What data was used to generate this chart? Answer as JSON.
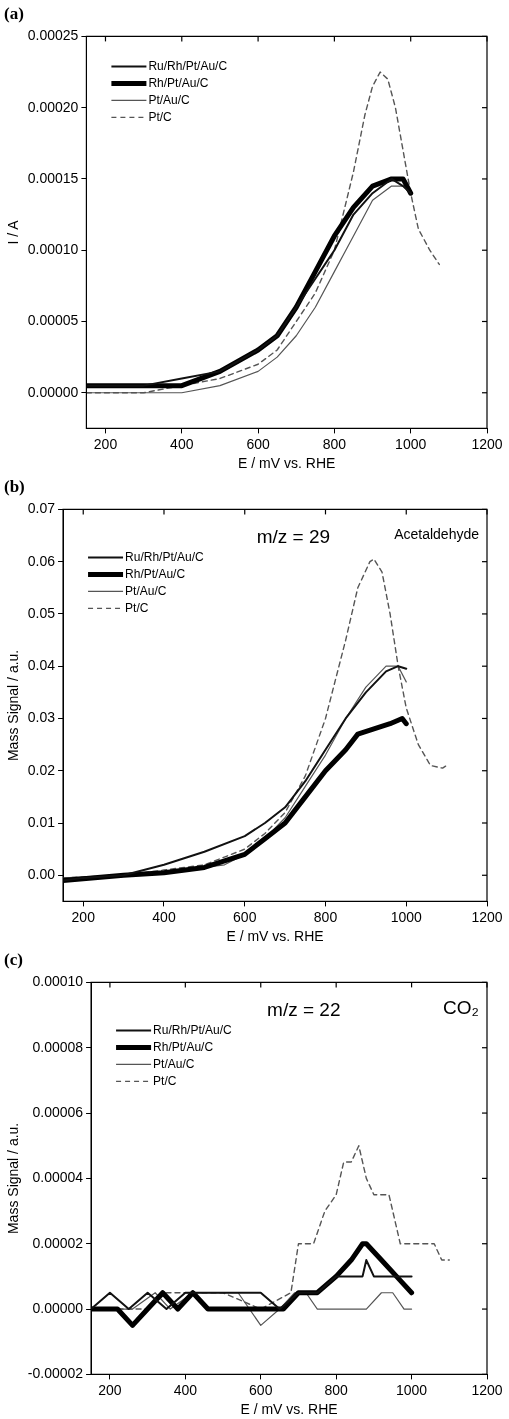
{
  "chart_data": [
    {
      "type": "line",
      "title": "(a)",
      "xlabel": "E / mV vs. RHE",
      "ylabel": "I / A",
      "xlim": [
        150,
        1200
      ],
      "xticks": [
        200,
        400,
        600,
        800,
        1000,
        1200
      ],
      "ylim": [
        -2.5e-05,
        0.00025
      ],
      "yticks": [
        {
          "value": 0,
          "label": "0.00000"
        },
        {
          "value": 5e-05,
          "label": "0.00005"
        },
        {
          "value": 0.0001,
          "label": "0.00010"
        },
        {
          "value": 0.00015,
          "label": "0.00015"
        },
        {
          "value": 0.0002,
          "label": "0.00020"
        },
        {
          "value": 0.00025,
          "label": "0.00025"
        }
      ],
      "legend": "top left",
      "marker": "none",
      "series": [
        {
          "name": "Ru/Rh/Pt/Au/C",
          "color": "#111111",
          "line_style": "solid",
          "x": [
            150,
            200,
            300,
            400,
            500,
            600,
            650,
            700,
            750,
            800,
            850,
            900,
            950,
            980,
            1000
          ],
          "values": [
            5e-06,
            5e-06,
            5e-06,
            1e-05,
            1.5e-05,
            3e-05,
            4e-05,
            6e-05,
            8e-05,
            0.0001,
            0.000125,
            0.00014,
            0.00015,
            0.000145,
            0.00014
          ]
        },
        {
          "name": "Rh/Pt/Au/C",
          "color": "#000000",
          "line_style": "solid",
          "x": [
            150,
            200,
            300,
            400,
            500,
            600,
            650,
            700,
            750,
            800,
            850,
            900,
            950,
            980,
            1000
          ],
          "values": [
            5e-06,
            5e-06,
            5e-06,
            5e-06,
            1.5e-05,
            3e-05,
            4e-05,
            6e-05,
            8.5e-05,
            0.00011,
            0.00013,
            0.000145,
            0.00015,
            0.00015,
            0.00014
          ]
        },
        {
          "name": "Pt/Au/C",
          "color": "#555555",
          "line_style": "solid",
          "x": [
            150,
            200,
            300,
            400,
            500,
            600,
            650,
            700,
            750,
            800,
            850,
            900,
            950,
            980,
            1000
          ],
          "values": [
            0,
            0,
            0,
            0,
            5e-06,
            1.5e-05,
            2.5e-05,
            4e-05,
            6e-05,
            8.5e-05,
            0.00011,
            0.000135,
            0.000145,
            0.000145,
            0.00014
          ]
        },
        {
          "name": "Pt/C",
          "color": "#555555",
          "line_style": "dashed",
          "x": [
            150,
            300,
            400,
            500,
            600,
            650,
            700,
            750,
            800,
            850,
            880,
            900,
            920,
            940,
            960,
            980,
            1000,
            1020,
            1050,
            1075
          ],
          "values": [
            0,
            0,
            5e-06,
            1e-05,
            2e-05,
            3e-05,
            5e-05,
            7e-05,
            0.0001,
            0.000155,
            0.000195,
            0.000215,
            0.000225,
            0.00022,
            0.0002,
            0.00017,
            0.00014,
            0.000115,
            0.0001,
            9e-05
          ]
        }
      ]
    },
    {
      "type": "line",
      "title": "(b)",
      "xlabel": "E / mV vs. RHE",
      "ylabel": "Mass Signal / a.u.",
      "annotations": [
        "m/z = 29",
        "Acetaldehyde"
      ],
      "xlim": [
        150,
        1200
      ],
      "xticks": [
        200,
        400,
        600,
        800,
        1000,
        1200
      ],
      "ylim": [
        -0.005,
        0.07
      ],
      "yticks": [
        {
          "value": 0,
          "label": "0.00"
        },
        {
          "value": 0.01,
          "label": "0.01"
        },
        {
          "value": 0.02,
          "label": "0.02"
        },
        {
          "value": 0.03,
          "label": "0.03"
        },
        {
          "value": 0.04,
          "label": "0.04"
        },
        {
          "value": 0.05,
          "label": "0.05"
        },
        {
          "value": 0.06,
          "label": "0.06"
        },
        {
          "value": 0.07,
          "label": "0.07"
        }
      ],
      "legend": "top left",
      "marker": "none",
      "series": [
        {
          "name": "Ru/Rh/Pt/Au/C",
          "color": "#111111",
          "line_style": "solid",
          "x": [
            150,
            200,
            300,
            400,
            500,
            600,
            650,
            700,
            750,
            800,
            850,
            900,
            950,
            980,
            1000
          ],
          "values": [
            -0.001,
            -0.0005,
            0,
            0.002,
            0.0045,
            0.0075,
            0.01,
            0.013,
            0.018,
            0.024,
            0.03,
            0.035,
            0.039,
            0.04,
            0.0395
          ]
        },
        {
          "name": "Rh/Pt/Au/C",
          "color": "#000000",
          "line_style": "solid",
          "x": [
            150,
            300,
            400,
            500,
            600,
            650,
            700,
            750,
            800,
            850,
            880,
            920,
            960,
            990,
            1000
          ],
          "values": [
            -0.001,
            0,
            0.0005,
            0.0015,
            0.004,
            0.007,
            0.01,
            0.015,
            0.02,
            0.024,
            0.027,
            0.028,
            0.029,
            0.03,
            0.029
          ]
        },
        {
          "name": "Pt/Au/C",
          "color": "#555555",
          "line_style": "solid",
          "x": [
            150,
            300,
            400,
            500,
            550,
            600,
            650,
            700,
            750,
            800,
            850,
            900,
            950,
            980,
            1000
          ],
          "values": [
            -0.0005,
            0,
            0.0005,
            0.0015,
            0.002,
            0.004,
            0.007,
            0.011,
            0.017,
            0.023,
            0.03,
            0.036,
            0.04,
            0.04,
            0.037
          ]
        },
        {
          "name": "Pt/C",
          "color": "#555555",
          "line_style": "dashed",
          "x": [
            150,
            300,
            400,
            500,
            600,
            650,
            700,
            750,
            800,
            850,
            880,
            910,
            920,
            940,
            960,
            980,
            1000,
            1030,
            1060,
            1090,
            1100
          ],
          "values": [
            -0.0005,
            0,
            0.001,
            0.002,
            0.005,
            0.008,
            0.012,
            0.019,
            0.03,
            0.045,
            0.055,
            0.06,
            0.0605,
            0.058,
            0.05,
            0.04,
            0.032,
            0.025,
            0.021,
            0.0205,
            0.021
          ]
        }
      ]
    },
    {
      "type": "line",
      "title": "(c)",
      "xlabel": "E / mV vs. RHE",
      "ylabel": "Mass Signal / a.u.",
      "annotations": [
        "m/z = 22",
        "CO₂"
      ],
      "xlim": [
        150,
        1200
      ],
      "xticks": [
        200,
        400,
        600,
        800,
        1000,
        1200
      ],
      "ylim": [
        -2e-05,
        0.0001
      ],
      "yticks": [
        {
          "value": -2e-05,
          "label": "-0.00002"
        },
        {
          "value": 0,
          "label": "0.00000"
        },
        {
          "value": 2e-05,
          "label": "0.00002"
        },
        {
          "value": 4e-05,
          "label": "0.00004"
        },
        {
          "value": 6e-05,
          "label": "0.00006"
        },
        {
          "value": 8e-05,
          "label": "0.00008"
        },
        {
          "value": 0.0001,
          "label": "0.00010"
        }
      ],
      "legend": "top left",
      "marker": "none",
      "series": [
        {
          "name": "Ru/Rh/Pt/Au/C",
          "color": "#111111",
          "line_style": "solid",
          "x": [
            150,
            200,
            250,
            300,
            350,
            400,
            450,
            500,
            550,
            600,
            650,
            700,
            750,
            800,
            830,
            850,
            870,
            880,
            900,
            950,
            1000
          ],
          "values": [
            0,
            5e-06,
            0,
            5e-06,
            0,
            5e-06,
            5e-06,
            5e-06,
            5e-06,
            5e-06,
            0,
            5e-06,
            5e-06,
            1e-05,
            1e-05,
            1e-05,
            1e-05,
            1.5e-05,
            1e-05,
            1e-05,
            1e-05
          ]
        },
        {
          "name": "Rh/Pt/Au/C",
          "color": "#000000",
          "line_style": "solid",
          "x": [
            150,
            180,
            220,
            260,
            300,
            340,
            380,
            420,
            460,
            500,
            560,
            620,
            660,
            700,
            750,
            800,
            840,
            870,
            880,
            920,
            960,
            1000
          ],
          "values": [
            0,
            0,
            0,
            -5e-06,
            0,
            5e-06,
            0,
            5e-06,
            0,
            0,
            0,
            0,
            0,
            5e-06,
            5e-06,
            1e-05,
            1.5e-05,
            2e-05,
            2e-05,
            1.5e-05,
            1e-05,
            5e-06
          ]
        },
        {
          "name": "Pt/Au/C",
          "color": "#555555",
          "line_style": "solid",
          "x": [
            150,
            200,
            260,
            320,
            360,
            420,
            480,
            540,
            600,
            650,
            690,
            720,
            750,
            780,
            820,
            850,
            880,
            920,
            950,
            980,
            1000
          ],
          "values": [
            0,
            0,
            0,
            5e-06,
            0,
            5e-06,
            5e-06,
            5e-06,
            -5e-06,
            0,
            5e-06,
            5e-06,
            0,
            0,
            0,
            0,
            0,
            5e-06,
            5e-06,
            0,
            0
          ]
        },
        {
          "name": "Pt/C",
          "color": "#555555",
          "line_style": "dashed",
          "x": [
            150,
            200,
            260,
            300,
            350,
            400,
            500,
            600,
            680,
            700,
            720,
            740,
            770,
            800,
            820,
            840,
            860,
            880,
            900,
            940,
            970,
            1000,
            1020,
            1060,
            1080,
            1100
          ],
          "values": [
            0,
            0,
            0,
            0,
            5e-06,
            5e-06,
            5e-06,
            0,
            5e-06,
            2e-05,
            2e-05,
            2e-05,
            3e-05,
            3.5e-05,
            4.5e-05,
            4.5e-05,
            5e-05,
            4e-05,
            3.5e-05,
            3.5e-05,
            2e-05,
            2e-05,
            2e-05,
            2e-05,
            1.5e-05,
            1.5e-05
          ]
        }
      ]
    }
  ]
}
